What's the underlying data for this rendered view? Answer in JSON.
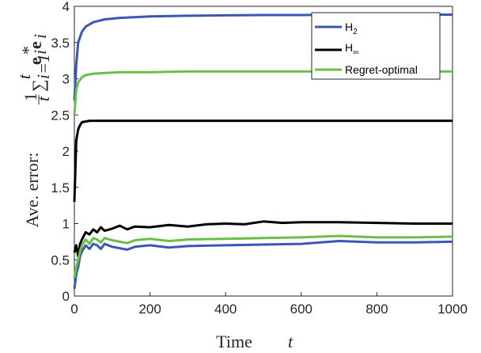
{
  "chart_data": {
    "type": "line",
    "xlabel": "Time",
    "xlabel_var": "t",
    "ylabel": "Ave. error:",
    "xlim": [
      0,
      1000
    ],
    "ylim": [
      0,
      4
    ],
    "xticks": [
      "0",
      "200",
      "400",
      "600",
      "800",
      "1000"
    ],
    "yticks": [
      "0",
      "0.5",
      "1",
      "1.5",
      "2",
      "2.5",
      "3",
      "3.5",
      "4"
    ],
    "legend_position": "top-right",
    "grid": false,
    "series": [
      {
        "name": "H",
        "name_sub": "2",
        "color": "#3a57b7",
        "curves": [
          {
            "x": [
              0,
              5,
              10,
              20,
              30,
              50,
              80,
              120,
              200,
              300,
              400,
              500,
              600,
              700,
              800,
              900,
              1000
            ],
            "y": [
              2.7,
              3.2,
              3.5,
              3.65,
              3.72,
              3.78,
              3.82,
              3.84,
              3.86,
              3.87,
              3.875,
              3.88,
              3.88,
              3.885,
              3.885,
              3.885,
              3.885
            ]
          },
          {
            "x": [
              0,
              5,
              10,
              15,
              20,
              30,
              40,
              50,
              60,
              70,
              80,
              100,
              120,
              140,
              160,
              200,
              250,
              300,
              400,
              500,
              600,
              700,
              800,
              900,
              1000
            ],
            "y": [
              0.1,
              0.3,
              0.4,
              0.55,
              0.62,
              0.7,
              0.65,
              0.72,
              0.7,
              0.65,
              0.72,
              0.68,
              0.66,
              0.64,
              0.68,
              0.7,
              0.67,
              0.69,
              0.7,
              0.71,
              0.72,
              0.76,
              0.74,
              0.74,
              0.75
            ]
          }
        ]
      },
      {
        "name": "H",
        "name_sub": "∞",
        "color": "#000000",
        "curves": [
          {
            "x": [
              0,
              5,
              10,
              15,
              20,
              30,
              40,
              60,
              80,
              100,
              150,
              200,
              300,
              400,
              600,
              800,
              1000
            ],
            "y": [
              1.3,
              2.15,
              2.3,
              2.36,
              2.4,
              2.41,
              2.42,
              2.42,
              2.42,
              2.42,
              2.42,
              2.42,
              2.42,
              2.42,
              2.42,
              2.42,
              2.42
            ]
          },
          {
            "x": [
              0,
              5,
              10,
              15,
              20,
              30,
              40,
              50,
              60,
              70,
              80,
              100,
              120,
              140,
              160,
              200,
              250,
              300,
              350,
              400,
              450,
              500,
              550,
              600,
              700,
              800,
              900,
              1000
            ],
            "y": [
              0.6,
              0.7,
              0.55,
              0.72,
              0.78,
              0.88,
              0.85,
              0.92,
              0.88,
              0.95,
              0.9,
              0.93,
              0.97,
              0.92,
              0.96,
              0.95,
              0.98,
              0.96,
              0.99,
              1.0,
              0.99,
              1.03,
              1.01,
              1.02,
              1.02,
              1.01,
              1.0,
              1.0
            ]
          }
        ]
      },
      {
        "name": "Regret-optimal",
        "color": "#6abf4b",
        "curves": [
          {
            "x": [
              0,
              5,
              10,
              20,
              30,
              50,
              80,
              120,
              200,
              300,
              400,
              600,
              800,
              1000
            ],
            "y": [
              2.5,
              2.85,
              2.95,
              3.02,
              3.05,
              3.07,
              3.08,
              3.09,
              3.09,
              3.1,
              3.1,
              3.1,
              3.1,
              3.1
            ]
          },
          {
            "x": [
              0,
              5,
              10,
              15,
              20,
              30,
              40,
              50,
              60,
              70,
              80,
              100,
              120,
              140,
              160,
              200,
              250,
              300,
              400,
              500,
              600,
              700,
              800,
              900,
              1000
            ],
            "y": [
              0.25,
              0.4,
              0.5,
              0.62,
              0.7,
              0.78,
              0.72,
              0.8,
              0.78,
              0.74,
              0.8,
              0.77,
              0.75,
              0.73,
              0.77,
              0.79,
              0.76,
              0.78,
              0.79,
              0.8,
              0.81,
              0.83,
              0.81,
              0.81,
              0.82
            ]
          }
        ]
      }
    ]
  }
}
